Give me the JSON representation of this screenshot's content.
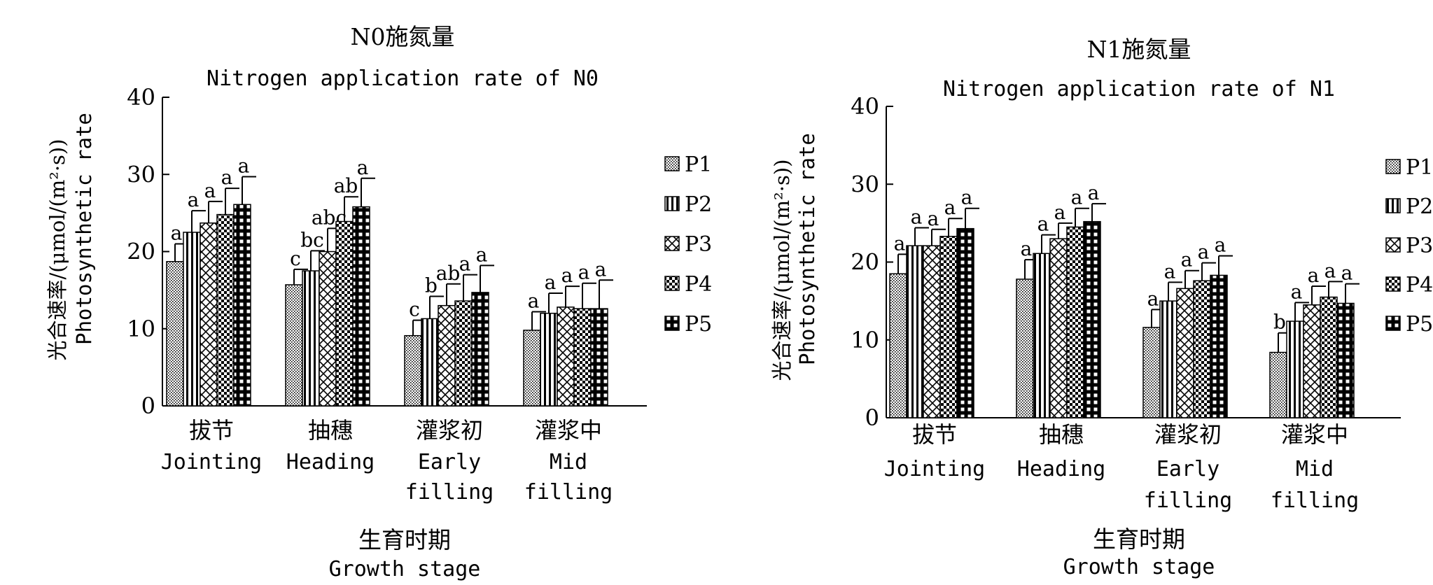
{
  "chart_data": [
    {
      "type": "bar",
      "title": "N0施氮量",
      "subtitle": "Nitrogen application rate of N0",
      "ylabel_cn": "光合速率/(μmol/(m²·s))",
      "ylabel_en": "Photosynthetic rate",
      "xlabel_cn": "生育时期",
      "xlabel_en": "Growth stage",
      "ylim": [
        0,
        40
      ],
      "yticks": [
        "0",
        "10",
        "20",
        "30",
        "40"
      ],
      "categories": [
        {
          "cn": "拔节",
          "en": [
            "Jointing"
          ]
        },
        {
          "cn": "抽穗",
          "en": [
            "Heading"
          ]
        },
        {
          "cn": "灌浆初",
          "en": [
            "Early",
            "filling"
          ]
        },
        {
          "cn": "灌浆中",
          "en": [
            "Mid",
            "filling"
          ]
        }
      ],
      "series": [
        {
          "name": "P1",
          "values": [
            18.7,
            15.7,
            9.1,
            9.8
          ],
          "errors": [
            2.3,
            2.0,
            2.0,
            2.4
          ],
          "letters": [
            "a",
            "c",
            "c",
            "a"
          ]
        },
        {
          "name": "P2",
          "values": [
            22.5,
            17.5,
            11.3,
            12.0
          ],
          "errors": [
            2.8,
            2.6,
            2.9,
            2.6
          ],
          "letters": [
            "a",
            "bc",
            "b",
            "a"
          ]
        },
        {
          "name": "P3",
          "values": [
            23.7,
            20.0,
            13.0,
            12.8
          ],
          "errors": [
            2.8,
            3.0,
            2.8,
            2.7
          ],
          "letters": [
            "a",
            "abc",
            "ab",
            "a"
          ]
        },
        {
          "name": "P4",
          "values": [
            24.8,
            23.9,
            13.6,
            12.6
          ],
          "errors": [
            3.4,
            3.2,
            3.4,
            3.3
          ],
          "letters": [
            "a",
            "ab",
            "a",
            "a"
          ]
        },
        {
          "name": "P5",
          "values": [
            26.1,
            25.8,
            14.7,
            12.6
          ],
          "errors": [
            3.6,
            3.7,
            3.5,
            3.7
          ],
          "letters": [
            "a",
            "a",
            "a",
            "a"
          ]
        }
      ],
      "legend_position": "right"
    },
    {
      "type": "bar",
      "title": "N1施氮量",
      "subtitle": "Nitrogen application rate of N1",
      "ylabel_cn": "光合速率/(μmol/(m²·s))",
      "ylabel_en": "Photosynthetic rate",
      "xlabel_cn": "生育时期",
      "xlabel_en": "Growth stage",
      "ylim": [
        0,
        40
      ],
      "yticks": [
        "0",
        "10",
        "20",
        "30",
        "40"
      ],
      "categories": [
        {
          "cn": "拔节",
          "en": [
            "Jointing"
          ]
        },
        {
          "cn": "抽穗",
          "en": [
            "Heading"
          ]
        },
        {
          "cn": "灌浆初",
          "en": [
            "Early",
            "filling"
          ]
        },
        {
          "cn": "灌浆中",
          "en": [
            "Mid",
            "filling"
          ]
        }
      ],
      "series": [
        {
          "name": "P1",
          "values": [
            18.5,
            17.8,
            11.6,
            8.4
          ],
          "errors": [
            2.5,
            2.5,
            2.3,
            2.5
          ],
          "letters": [
            "a",
            "a",
            "a",
            "b"
          ]
        },
        {
          "name": "P2",
          "values": [
            22.1,
            21.1,
            15.0,
            12.4
          ],
          "errors": [
            2.3,
            2.4,
            2.4,
            2.4
          ],
          "letters": [
            "a",
            "a",
            "a",
            "a"
          ]
        },
        {
          "name": "P3",
          "values": [
            22.1,
            23.0,
            16.6,
            14.5
          ],
          "errors": [
            2.1,
            2.0,
            2.3,
            2.4
          ],
          "letters": [
            "a",
            "a",
            "a",
            "a"
          ]
        },
        {
          "name": "P4",
          "values": [
            23.3,
            24.5,
            17.6,
            15.5
          ],
          "errors": [
            2.3,
            2.4,
            2.3,
            2.0
          ],
          "letters": [
            "a",
            "a",
            "a",
            "a"
          ]
        },
        {
          "name": "P5",
          "values": [
            24.3,
            25.2,
            18.3,
            14.7
          ],
          "errors": [
            2.6,
            2.3,
            2.5,
            2.5
          ],
          "letters": [
            "a",
            "a",
            "a",
            "a"
          ]
        }
      ],
      "legend_position": "right"
    }
  ]
}
